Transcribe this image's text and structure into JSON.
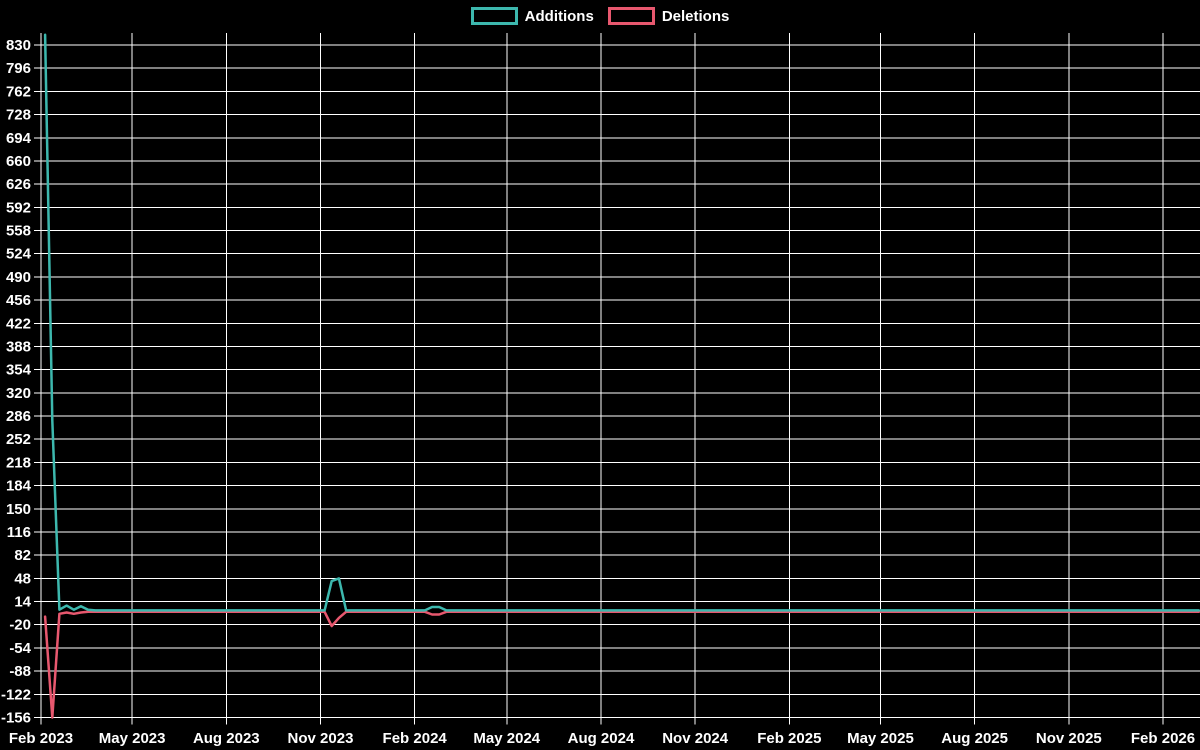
{
  "chart_data": {
    "type": "line",
    "title": "",
    "background_color": "#000000",
    "grid": true,
    "grid_color": "#ffffff",
    "text_color": "#ffffff",
    "legend_position": "top-center",
    "y_ticks": [
      830,
      796,
      762,
      728,
      694,
      660,
      626,
      592,
      558,
      524,
      490,
      456,
      422,
      388,
      354,
      320,
      286,
      252,
      218,
      184,
      150,
      116,
      82,
      48,
      14,
      -20,
      -54,
      -88,
      -122,
      -156
    ],
    "ylim": [
      -156,
      847
    ],
    "x_tick_labels": [
      "Feb 2023",
      "May 2023",
      "Aug 2023",
      "Nov 2023",
      "Feb 2024",
      "May 2024",
      "Aug 2024",
      "Nov 2024",
      "Feb 2025",
      "May 2025",
      "Aug 2025",
      "Nov 2025",
      "Feb 2026"
    ],
    "x_tick_dates": [
      "2023-02-01",
      "2023-05-01",
      "2023-08-01",
      "2023-11-01",
      "2024-02-01",
      "2024-05-01",
      "2024-08-01",
      "2024-11-01",
      "2025-02-01",
      "2025-05-01",
      "2025-08-01",
      "2025-11-01",
      "2026-02-01"
    ],
    "x_range": [
      "2023-02-01",
      "2026-03-08"
    ],
    "series": [
      {
        "name": "Deletions",
        "color": "#e8586f",
        "points": [
          [
            "2023-02-05",
            -8
          ],
          [
            "2023-02-12",
            -156
          ],
          [
            "2023-02-19",
            -4
          ],
          [
            "2023-02-26",
            -2
          ],
          [
            "2023-03-05",
            -4
          ],
          [
            "2023-03-12",
            -2
          ],
          [
            "2023-03-19",
            -1
          ],
          [
            "2023-03-26",
            -1
          ],
          [
            "2023-10-29",
            -1
          ],
          [
            "2023-11-05",
            -1
          ],
          [
            "2023-11-12",
            -22
          ],
          [
            "2023-11-19",
            -10
          ],
          [
            "2023-11-26",
            -1
          ],
          [
            "2024-02-11",
            -1
          ],
          [
            "2024-02-18",
            -5
          ],
          [
            "2024-02-25",
            -5
          ],
          [
            "2024-03-03",
            -1
          ],
          [
            "2026-03-08",
            -1
          ]
        ]
      },
      {
        "name": "Additions",
        "color": "#3db8ae",
        "points": [
          [
            "2023-02-05",
            845
          ],
          [
            "2023-02-12",
            280
          ],
          [
            "2023-02-19",
            2
          ],
          [
            "2023-02-26",
            8
          ],
          [
            "2023-03-05",
            2
          ],
          [
            "2023-03-12",
            7
          ],
          [
            "2023-03-19",
            2
          ],
          [
            "2023-03-26",
            1
          ],
          [
            "2023-10-29",
            1
          ],
          [
            "2023-11-05",
            1
          ],
          [
            "2023-11-12",
            44
          ],
          [
            "2023-11-19",
            48
          ],
          [
            "2023-11-26",
            1
          ],
          [
            "2024-02-11",
            1
          ],
          [
            "2024-02-18",
            6
          ],
          [
            "2024-02-25",
            6
          ],
          [
            "2024-03-03",
            1
          ],
          [
            "2026-03-08",
            1
          ]
        ]
      }
    ]
  }
}
